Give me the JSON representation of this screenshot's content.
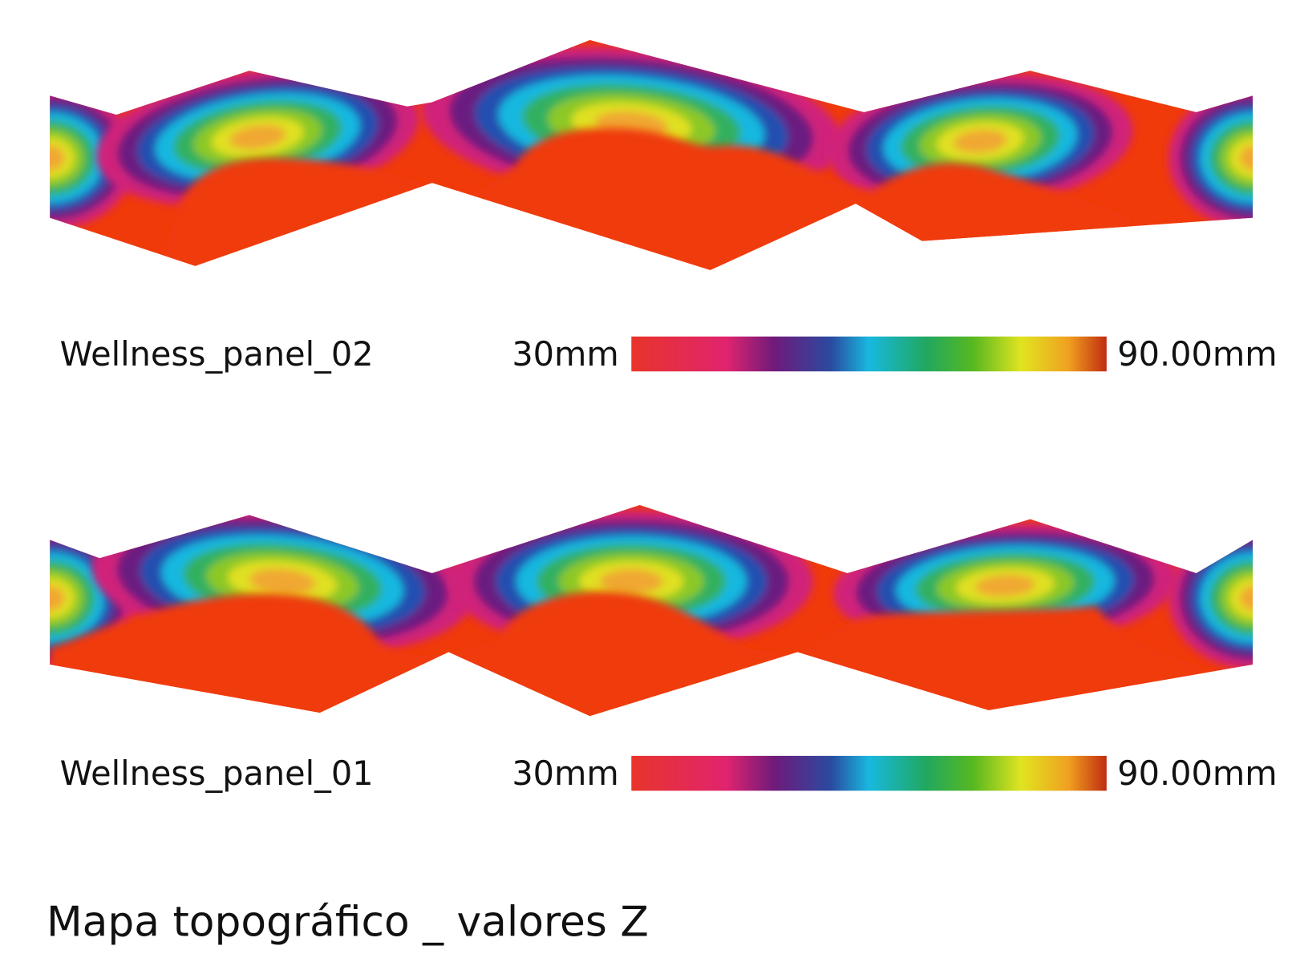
{
  "panels": [
    {
      "name": "Wellness_panel_02",
      "scale_min": "30mm",
      "scale_max": "90.00mm"
    },
    {
      "name": "Wellness_panel_01",
      "scale_min": "30mm",
      "scale_max": "90.00mm"
    }
  ],
  "title": "Mapa topográfico _ valores Z"
}
